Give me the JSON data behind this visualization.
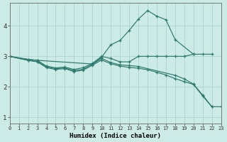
{
  "background_color": "#cceae6",
  "grid_color": "#aad4d0",
  "line_color": "#2d7a6e",
  "xlabel": "Humidex (Indice chaleur)",
  "xlim": [
    0,
    23
  ],
  "ylim": [
    0.8,
    4.75
  ],
  "yticks": [
    1,
    2,
    3,
    4
  ],
  "xtick_labels": [
    "0",
    "1",
    "2",
    "3",
    "4",
    "5",
    "6",
    "7",
    "8",
    "9",
    "10",
    "11",
    "12",
    "13",
    "14",
    "15",
    "16",
    "17",
    "18",
    "19",
    "20",
    "21",
    "22",
    "23"
  ],
  "series": [
    {
      "x": [
        0,
        2,
        3,
        9,
        10,
        11,
        12,
        13,
        14,
        15,
        16,
        17,
        18,
        20,
        21,
        22
      ],
      "y": [
        3.0,
        2.9,
        2.87,
        2.75,
        2.97,
        3.38,
        3.52,
        3.85,
        4.22,
        4.5,
        4.32,
        4.2,
        3.55,
        3.07,
        3.07,
        3.07
      ]
    },
    {
      "x": [
        0,
        2,
        3,
        4,
        5,
        6,
        7,
        8,
        9,
        10,
        11,
        12,
        13,
        14,
        15,
        16,
        17,
        18,
        19,
        20
      ],
      "y": [
        3.0,
        2.9,
        2.87,
        2.68,
        2.62,
        2.65,
        2.57,
        2.63,
        2.77,
        3.0,
        2.93,
        2.82,
        2.82,
        3.0,
        3.0,
        3.0,
        3.0,
        3.0,
        3.0,
        3.07
      ]
    },
    {
      "x": [
        0,
        2,
        3,
        4,
        5,
        6,
        7,
        8,
        9,
        10,
        11,
        12,
        13,
        14,
        18,
        19,
        20,
        21,
        22
      ],
      "y": [
        3.0,
        2.87,
        2.83,
        2.66,
        2.6,
        2.62,
        2.53,
        2.58,
        2.74,
        2.93,
        2.8,
        2.72,
        2.7,
        2.67,
        2.38,
        2.26,
        2.09,
        1.73,
        1.35
      ]
    },
    {
      "x": [
        0,
        2,
        3,
        4,
        5,
        6,
        7,
        8,
        9,
        10,
        11,
        12,
        13,
        14,
        15,
        16,
        17,
        18,
        19,
        20,
        21,
        22,
        23
      ],
      "y": [
        3.0,
        2.87,
        2.82,
        2.63,
        2.57,
        2.6,
        2.5,
        2.55,
        2.71,
        2.88,
        2.76,
        2.68,
        2.64,
        2.61,
        2.56,
        2.48,
        2.39,
        2.27,
        2.17,
        2.08,
        1.7,
        1.35,
        1.35
      ]
    }
  ]
}
